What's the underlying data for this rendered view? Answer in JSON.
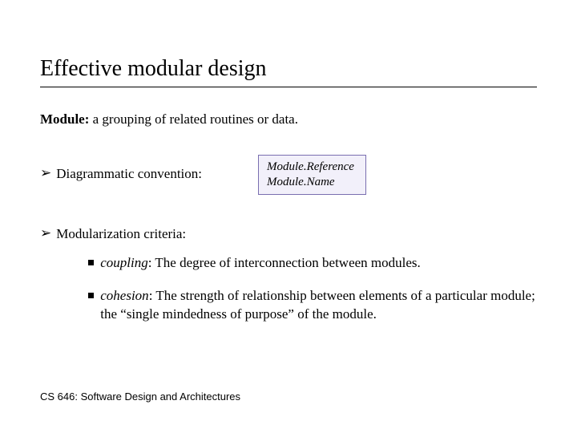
{
  "title": "Effective modular design",
  "definition": {
    "term": "Module:",
    "text": " a grouping of related routines or data."
  },
  "bullets": {
    "arrow_glyph": "➢",
    "diagrammatic_label": "Diagrammatic convention:",
    "modularization_label": "Modularization criteria:"
  },
  "module_box": {
    "line1": "Module.Reference",
    "line2": "Module.Name",
    "border_color": "#7a6eb0",
    "bg_color": "#f2f0fa"
  },
  "criteria": {
    "coupling": {
      "term": "coupling",
      "text": ": The degree of interconnection between modules."
    },
    "cohesion": {
      "term": "cohesion",
      "text": ": The strength of relationship between elements of a particular module; the “single mindedness of purpose” of the module."
    }
  },
  "footer": "CS 646: Software Design and Architectures",
  "colors": {
    "text": "#000000",
    "background": "#ffffff"
  },
  "fonts": {
    "body_family": "Georgia, Times New Roman, serif",
    "title_size_pt": 21,
    "body_size_pt": 13,
    "footer_size_pt": 10
  }
}
